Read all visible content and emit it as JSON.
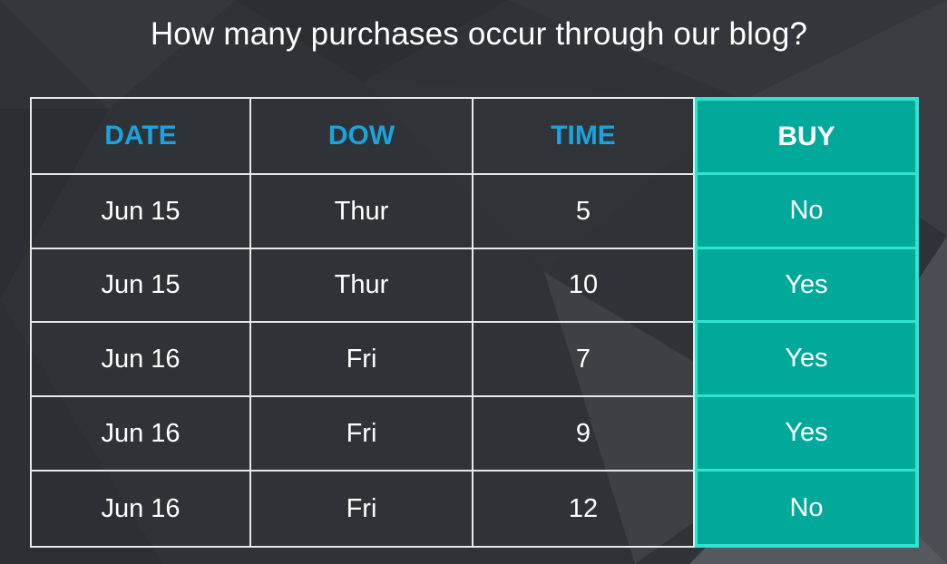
{
  "title": "How many purchases occur through our blog?",
  "table": {
    "headers": [
      "DATE",
      "DOW",
      "TIME",
      "BUY"
    ],
    "rows": [
      [
        "Jun 15",
        "Thur",
        "5",
        "No"
      ],
      [
        "Jun 15",
        "Thur",
        "10",
        "Yes"
      ],
      [
        "Jun 16",
        "Fri",
        "7",
        "Yes"
      ],
      [
        "Jun 16",
        "Fri",
        "9",
        "Yes"
      ],
      [
        "Jun 16",
        "Fri",
        "12",
        "No"
      ]
    ]
  },
  "colors": {
    "background": "#2e3136",
    "header_text": "#1aa3dc",
    "highlight_fill": "#00a99a",
    "highlight_border": "#2fe3d1",
    "grid_line": "#e8e8e8"
  }
}
